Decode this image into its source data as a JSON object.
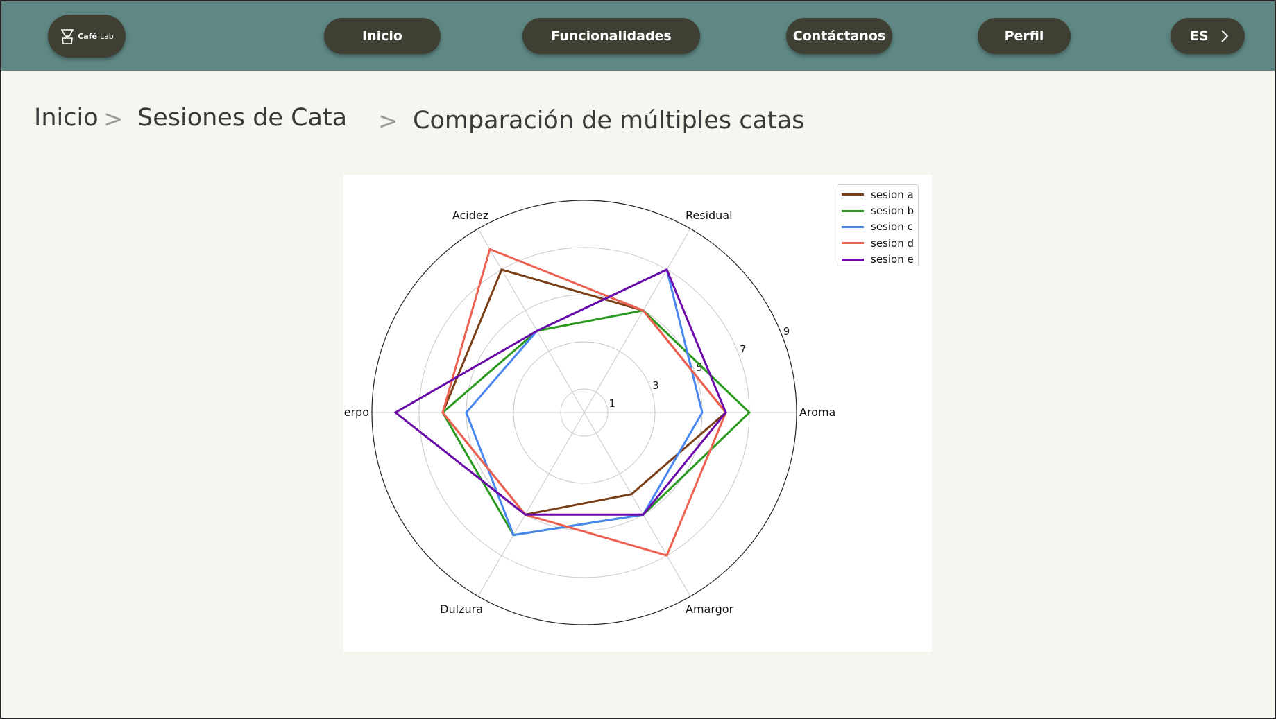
{
  "header": {
    "logo": {
      "brand": "Café",
      "brand_suffix": "Lab",
      "icon": "coffee-dripper-icon"
    },
    "nav": [
      {
        "label": "Inicio"
      },
      {
        "label": "Funcionalidades"
      },
      {
        "label": "Contáctanos"
      },
      {
        "label": "Perfil"
      }
    ],
    "language": {
      "label": "ES",
      "icon": "chevron-right-icon"
    }
  },
  "breadcrumb": {
    "items": [
      "Inicio",
      "Sesiones de Cata",
      "Comparación de múltiples catas"
    ],
    "separator": ">"
  },
  "chart_data": {
    "type": "radar",
    "axes": [
      "Aroma",
      "Residual",
      "Acidez",
      "Cuerpo",
      "Dulzura",
      "Amargor"
    ],
    "radial_ticks": [
      1,
      3,
      5,
      7,
      9
    ],
    "rlim": [
      0,
      9
    ],
    "grid": true,
    "legend_position": "top-right",
    "series": [
      {
        "name": "sesion a",
        "color": "#7b3f18",
        "values": [
          6,
          5,
          7,
          6,
          5,
          4
        ]
      },
      {
        "name": "sesion b",
        "color": "#2a9a1f",
        "values": [
          7,
          5,
          4,
          6,
          6,
          5
        ]
      },
      {
        "name": "sesion c",
        "color": "#4a86f0",
        "values": [
          5,
          7,
          4,
          5,
          6,
          5
        ]
      },
      {
        "name": "sesion d",
        "color": "#ee6050",
        "values": [
          6,
          5,
          8,
          6,
          5,
          7
        ]
      },
      {
        "name": "sesion e",
        "color": "#6a0aa8",
        "values": [
          6,
          7,
          4,
          8,
          5,
          5
        ]
      }
    ]
  }
}
